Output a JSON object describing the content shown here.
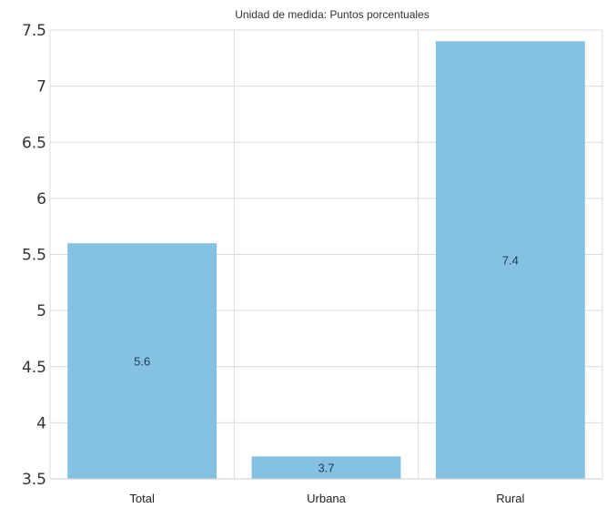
{
  "chart_data": {
    "type": "bar",
    "title": "Unidad de medida: Puntos porcentuales",
    "categories": [
      "Total",
      "Urbana",
      "Rural"
    ],
    "values": [
      5.6,
      3.7,
      7.4
    ],
    "data_labels": [
      "5.6",
      "3.7",
      "7.4"
    ],
    "ylim": [
      3.5,
      7.5
    ],
    "yticks": [
      "3.5",
      "4",
      "4.5",
      "5",
      "5.5",
      "6",
      "6.5",
      "7",
      "7.5"
    ],
    "xlabel": "",
    "ylabel": "",
    "grid": true,
    "bar_color": "#84c1e3"
  }
}
